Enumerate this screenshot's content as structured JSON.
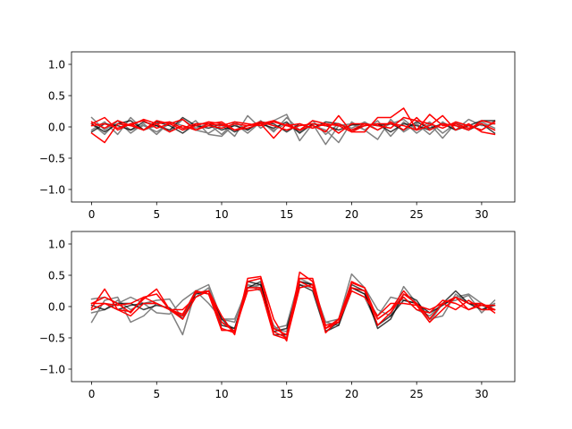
{
  "colors": {
    "gray": "#808080",
    "black": "#000000",
    "red": "#ff0000"
  },
  "chart_data": [
    {
      "type": "line",
      "title": "",
      "xlabel": "",
      "ylabel": "",
      "xlim": [
        -1.55,
        32.55
      ],
      "ylim": [
        -1.2,
        1.2
      ],
      "xticks": [
        0,
        5,
        10,
        15,
        20,
        25,
        30
      ],
      "xtick_labels": [
        "0",
        "5",
        "10",
        "15",
        "20",
        "25",
        "30"
      ],
      "yticks": [
        -1.0,
        -0.5,
        0.0,
        0.5,
        1.0
      ],
      "ytick_labels": [
        "−1.0",
        "−0.5",
        "0.0",
        "0.5",
        "1.0"
      ],
      "grid": false,
      "x": [
        0,
        1,
        2,
        3,
        4,
        5,
        6,
        7,
        8,
        9,
        10,
        11,
        12,
        13,
        14,
        15,
        16,
        17,
        18,
        19,
        20,
        21,
        22,
        23,
        24,
        25,
        26,
        27,
        28,
        29,
        30,
        31
      ],
      "series": [
        {
          "color": "gray",
          "values": [
            0.15,
            -0.05,
            0.1,
            -0.1,
            0.05,
            -0.12,
            0.08,
            0.02,
            -0.05,
            -0.1,
            0.03,
            -0.15,
            0.18,
            -0.02,
            0.1,
            0.2,
            -0.22,
            0.05,
            -0.28,
            0.02,
            0.05,
            -0.05,
            0.1,
            -0.15,
            0.08,
            -0.1,
            0.05,
            -0.18,
            0.06,
            0.02,
            -0.05,
            0.1
          ]
        },
        {
          "color": "gray",
          "values": [
            -0.05,
            0.08,
            -0.12,
            0.15,
            -0.05,
            0.02,
            -0.08,
            0.12,
            -0.02,
            0.05,
            -0.12,
            0.08,
            -0.05,
            0.1,
            -0.08,
            0.15,
            -0.05,
            0.02,
            -0.05,
            -0.25,
            0.08,
            -0.05,
            -0.2,
            0.12,
            -0.08,
            0.05,
            -0.12,
            0.08,
            -0.05,
            0.12,
            0.02,
            0.05
          ]
        },
        {
          "color": "gray",
          "values": [
            0.05,
            -0.12,
            0.1,
            -0.05,
            0.02,
            -0.08,
            0.05,
            -0.05,
            0.1,
            -0.12,
            -0.15,
            0.05,
            -0.1,
            0.08,
            -0.05,
            0.05,
            -0.08,
            0.1,
            -0.12,
            0.05,
            -0.02,
            0.08,
            -0.05,
            0.05,
            0.12,
            -0.05,
            0.08,
            -0.1,
            0.05,
            -0.05,
            0.08,
            -0.02
          ]
        },
        {
          "color": "black",
          "values": [
            -0.08,
            0.05,
            0.02,
            -0.05,
            0.08,
            0.02,
            -0.05,
            0.15,
            0.02,
            -0.02,
            0.05,
            -0.08,
            0.02,
            0.05,
            -0.02,
            0.08,
            -0.1,
            0.05,
            0.02,
            -0.05,
            0.03,
            0.05,
            0.02,
            0.05,
            -0.05,
            0.08,
            -0.02,
            0.05,
            -0.05,
            0.02,
            0.1,
            0.1
          ]
        },
        {
          "color": "black",
          "values": [
            0.05,
            -0.08,
            0.05,
            0.1,
            -0.05,
            0.08,
            0.02,
            -0.1,
            0.05,
            0.05,
            -0.05,
            0.02,
            -0.05,
            0.08,
            0.05,
            -0.08,
            0.05,
            -0.02,
            0.08,
            0.05,
            -0.05,
            0.02,
            0.05,
            -0.08,
            0.05,
            0.02,
            -0.05,
            0.05,
            0.02,
            -0.05,
            0.05,
            -0.1
          ]
        },
        {
          "color": "red",
          "values": [
            -0.1,
            -0.25,
            0.05,
            0.02,
            -0.05,
            0.1,
            0.05,
            0.12,
            -0.05,
            0.05,
            0.08,
            -0.05,
            0.02,
            0.05,
            -0.18,
            0.05,
            -0.05,
            0.02,
            -0.08,
            0.18,
            -0.08,
            -0.08,
            0.15,
            0.15,
            0.3,
            -0.05,
            0.02,
            0.18,
            -0.05,
            0.05,
            -0.08,
            -0.12
          ]
        },
        {
          "color": "red",
          "values": [
            0.05,
            0.15,
            -0.05,
            0.05,
            0.1,
            -0.02,
            0.05,
            -0.05,
            0.02,
            0.08,
            0.05,
            -0.05,
            -0.02,
            0.05,
            0.1,
            0.02,
            -0.05,
            0.1,
            0.05,
            -0.1,
            0.05,
            0.05,
            -0.05,
            0.08,
            -0.05,
            0.15,
            -0.05,
            0.05,
            0.02,
            -0.05,
            0.1,
            0.05
          ]
        },
        {
          "color": "red",
          "values": [
            0.02,
            0.05,
            -0.02,
            0.05,
            -0.05,
            0.05,
            -0.08,
            0.02,
            -0.05,
            0.02,
            -0.02,
            0.05,
            0.02,
            0.08,
            0.02,
            -0.05,
            0.02,
            0.05,
            0.02,
            0.05,
            -0.05,
            0.05,
            0.02,
            -0.02,
            0.15,
            0.1,
            0.05,
            -0.02,
            0.08,
            0.02,
            -0.05,
            0.08
          ]
        },
        {
          "color": "red",
          "values": [
            0.08,
            -0.02,
            0.1,
            0.02,
            0.12,
            0.05,
            0.08,
            -0.02,
            0.05,
            0.05,
            0.02,
            0.08,
            0.05,
            0.02,
            0.08,
            0.02,
            0.05,
            -0.02,
            0.05,
            0.02,
            -0.08,
            0.02,
            0.05,
            0.05,
            0.02,
            -0.05,
            0.2,
            0.02,
            0.05,
            -0.02,
            0.05,
            -0.05
          ]
        }
      ]
    },
    {
      "type": "line",
      "title": "",
      "xlabel": "",
      "ylabel": "",
      "xlim": [
        -1.55,
        32.55
      ],
      "ylim": [
        -1.2,
        1.2
      ],
      "xticks": [
        0,
        5,
        10,
        15,
        20,
        25,
        30
      ],
      "xtick_labels": [
        "0",
        "5",
        "10",
        "15",
        "20",
        "25",
        "30"
      ],
      "yticks": [
        -1.0,
        -0.5,
        0.0,
        0.5,
        1.0
      ],
      "ytick_labels": [
        "−1.0",
        "−0.5",
        "0.0",
        "0.5",
        "1.0"
      ],
      "grid": false,
      "x": [
        0,
        1,
        2,
        3,
        4,
        5,
        6,
        7,
        8,
        9,
        10,
        11,
        12,
        13,
        14,
        15,
        16,
        17,
        18,
        19,
        20,
        21,
        22,
        23,
        24,
        25,
        26,
        27,
        28,
        29,
        30,
        31
      ],
      "series": [
        {
          "color": "gray",
          "values": [
            -0.25,
            0.1,
            0.15,
            -0.25,
            -0.15,
            0.05,
            -0.05,
            -0.45,
            0.25,
            0.35,
            -0.2,
            -0.2,
            0.3,
            0.35,
            -0.35,
            -0.3,
            0.45,
            0.35,
            -0.25,
            -0.2,
            0.52,
            0.3,
            -0.05,
            -0.15,
            0.32,
            0.05,
            -0.25,
            0.05,
            0.15,
            0.2,
            0.05,
            -0.05
          ]
        },
        {
          "color": "gray",
          "values": [
            0.12,
            0.15,
            0.05,
            0.15,
            0.05,
            -0.1,
            -0.12,
            0.1,
            0.25,
            0.05,
            -0.2,
            -0.25,
            0.35,
            0.3,
            -0.35,
            -0.4,
            0.4,
            0.35,
            -0.35,
            -0.2,
            0.3,
            0.2,
            -0.15,
            0.15,
            0.1,
            0.05,
            -0.2,
            -0.15,
            0.2,
            0.05,
            -0.05,
            0.05
          ]
        },
        {
          "color": "gray",
          "values": [
            -0.1,
            -0.05,
            0.1,
            -0.05,
            0.05,
            0.1,
            0.12,
            -0.2,
            0.15,
            0.3,
            -0.25,
            -0.35,
            0.35,
            0.25,
            -0.3,
            -0.5,
            0.35,
            0.3,
            -0.25,
            -0.3,
            0.25,
            0.15,
            -0.3,
            -0.1,
            0.15,
            -0.05,
            -0.15,
            0.05,
            0.1,
            0.18,
            -0.1,
            0.1
          ]
        },
        {
          "color": "black",
          "values": [
            0.02,
            -0.05,
            0.05,
            0.05,
            -0.05,
            0.02,
            -0.02,
            -0.2,
            0.2,
            0.25,
            -0.2,
            -0.4,
            0.4,
            0.35,
            -0.4,
            -0.35,
            0.35,
            0.25,
            -0.4,
            -0.25,
            0.35,
            0.25,
            -0.35,
            -0.2,
            0.2,
            0.1,
            -0.2,
            0.05,
            0.25,
            0.05,
            -0.05,
            0.02
          ]
        },
        {
          "color": "black",
          "values": [
            -0.05,
            0.05,
            -0.05,
            0.02,
            0.05,
            0.05,
            -0.05,
            -0.15,
            0.25,
            0.2,
            -0.3,
            -0.35,
            0.3,
            0.4,
            -0.45,
            -0.45,
            0.4,
            0.35,
            -0.4,
            -0.3,
            0.3,
            0.2,
            -0.3,
            -0.15,
            0.1,
            0.05,
            -0.1,
            0.02,
            0.15,
            0.05,
            0.02,
            -0.05
          ]
        },
        {
          "color": "red",
          "values": [
            -0.02,
            0.28,
            -0.05,
            -0.15,
            0.05,
            0.05,
            -0.05,
            -0.2,
            0.15,
            0.25,
            -0.15,
            -0.45,
            0.45,
            0.48,
            -0.2,
            -0.55,
            0.55,
            0.4,
            -0.42,
            -0.2,
            0.38,
            0.3,
            -0.3,
            -0.1,
            0.2,
            0.05,
            -0.2,
            0.05,
            0.15,
            -0.05,
            0.05,
            -0.05
          ]
        },
        {
          "color": "red",
          "values": [
            0.05,
            0.05,
            -0.05,
            -0.08,
            0.12,
            0.28,
            -0.05,
            -0.12,
            0.22,
            0.25,
            -0.25,
            -0.4,
            0.4,
            0.45,
            -0.35,
            -0.45,
            0.45,
            0.45,
            -0.35,
            -0.2,
            0.3,
            0.25,
            -0.2,
            -0.05,
            0.25,
            0.02,
            -0.25,
            -0.05,
            0.15,
            0.05,
            0.05,
            -0.1
          ]
        },
        {
          "color": "red",
          "values": [
            0.05,
            0.15,
            0.05,
            -0.1,
            0.15,
            0.05,
            -0.05,
            -0.05,
            0.15,
            0.25,
            -0.35,
            -0.42,
            0.3,
            0.3,
            -0.4,
            -0.5,
            0.4,
            0.3,
            -0.35,
            -0.25,
            0.4,
            0.3,
            -0.2,
            -0.05,
            0.15,
            -0.05,
            -0.1,
            0.1,
            0.05,
            -0.05,
            0.02,
            0.02
          ]
        },
        {
          "color": "red",
          "values": [
            -0.05,
            0.05,
            0.02,
            0.05,
            0.15,
            0.2,
            -0.05,
            -0.15,
            0.25,
            0.2,
            -0.38,
            -0.38,
            0.25,
            0.28,
            -0.45,
            -0.52,
            0.3,
            0.35,
            -0.3,
            -0.25,
            0.25,
            0.15,
            -0.15,
            0.05,
            0.05,
            0.02,
            -0.05,
            0.05,
            -0.05,
            0.1,
            -0.05,
            -0.05
          ]
        }
      ]
    }
  ]
}
